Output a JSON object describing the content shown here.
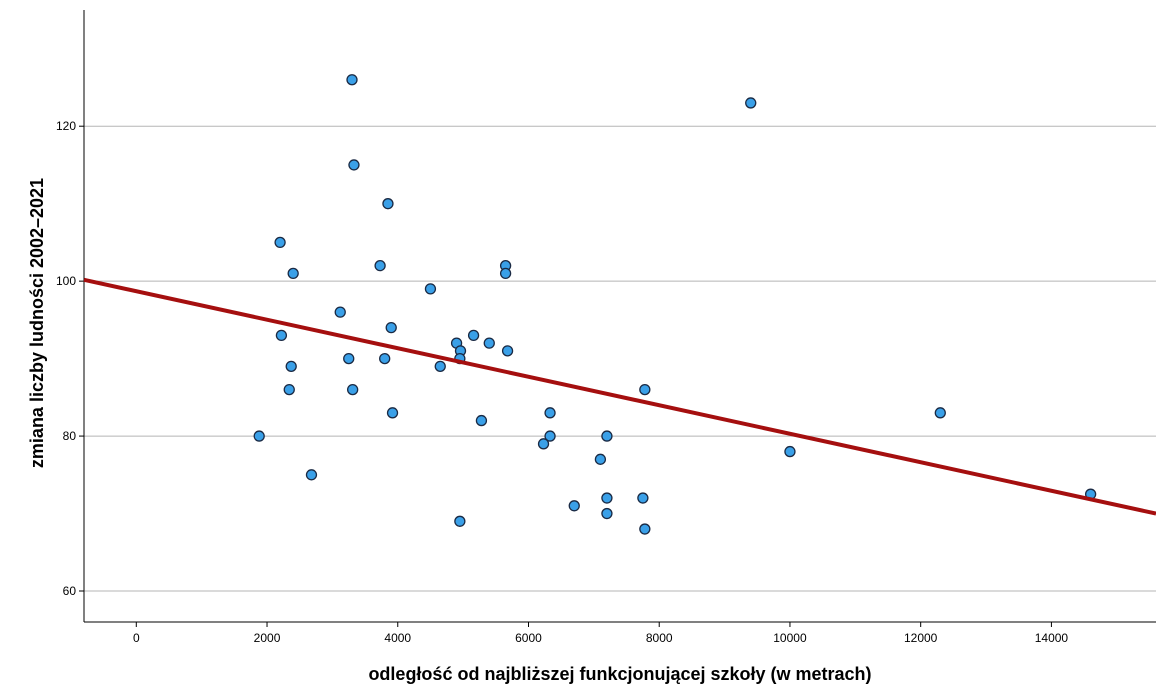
{
  "chart_data": {
    "type": "scatter",
    "xlabel": "odległość od najbliższej funkcjonującej szkoły (w metrach)",
    "ylabel": "zmiana liczby ludności 2002–2021",
    "xlim": [
      -800,
      15600
    ],
    "ylim": [
      56,
      135
    ],
    "xticks": [
      0,
      2000,
      4000,
      6000,
      8000,
      10000,
      12000,
      14000
    ],
    "yticks": [
      60,
      80,
      100,
      120
    ],
    "grid": "horizontal",
    "points": [
      {
        "x": 3300,
        "y": 126
      },
      {
        "x": 9400,
        "y": 123
      },
      {
        "x": 3330,
        "y": 115
      },
      {
        "x": 3850,
        "y": 110
      },
      {
        "x": 2200,
        "y": 105
      },
      {
        "x": 2400,
        "y": 101
      },
      {
        "x": 3730,
        "y": 102
      },
      {
        "x": 5650,
        "y": 102
      },
      {
        "x": 5650,
        "y": 101
      },
      {
        "x": 4500,
        "y": 99
      },
      {
        "x": 3120,
        "y": 96
      },
      {
        "x": 3900,
        "y": 94
      },
      {
        "x": 2220,
        "y": 93
      },
      {
        "x": 5160,
        "y": 93
      },
      {
        "x": 4900,
        "y": 92
      },
      {
        "x": 5400,
        "y": 92
      },
      {
        "x": 4960,
        "y": 91
      },
      {
        "x": 5680,
        "y": 91
      },
      {
        "x": 3250,
        "y": 90
      },
      {
        "x": 3800,
        "y": 90
      },
      {
        "x": 4950,
        "y": 90
      },
      {
        "x": 2370,
        "y": 89
      },
      {
        "x": 4650,
        "y": 89
      },
      {
        "x": 2340,
        "y": 86
      },
      {
        "x": 3310,
        "y": 86
      },
      {
        "x": 7780,
        "y": 86
      },
      {
        "x": 3920,
        "y": 83
      },
      {
        "x": 6330,
        "y": 83
      },
      {
        "x": 12300,
        "y": 83
      },
      {
        "x": 5280,
        "y": 82
      },
      {
        "x": 1880,
        "y": 80
      },
      {
        "x": 6330,
        "y": 80
      },
      {
        "x": 7200,
        "y": 80
      },
      {
        "x": 6230,
        "y": 79
      },
      {
        "x": 10000,
        "y": 78
      },
      {
        "x": 7100,
        "y": 77
      },
      {
        "x": 2680,
        "y": 75
      },
      {
        "x": 14600,
        "y": 72.5
      },
      {
        "x": 7200,
        "y": 72
      },
      {
        "x": 7750,
        "y": 72
      },
      {
        "x": 6700,
        "y": 71
      },
      {
        "x": 7200,
        "y": 70
      },
      {
        "x": 4950,
        "y": 69
      },
      {
        "x": 7780,
        "y": 68
      }
    ],
    "fit_line": {
      "intercept": 98.7,
      "slope": -0.00184,
      "color": "#a50f0f"
    },
    "marker_fill": "#3aa0e8",
    "marker_stroke": "#1a2a44",
    "grid_color": "#b5b5b5"
  }
}
